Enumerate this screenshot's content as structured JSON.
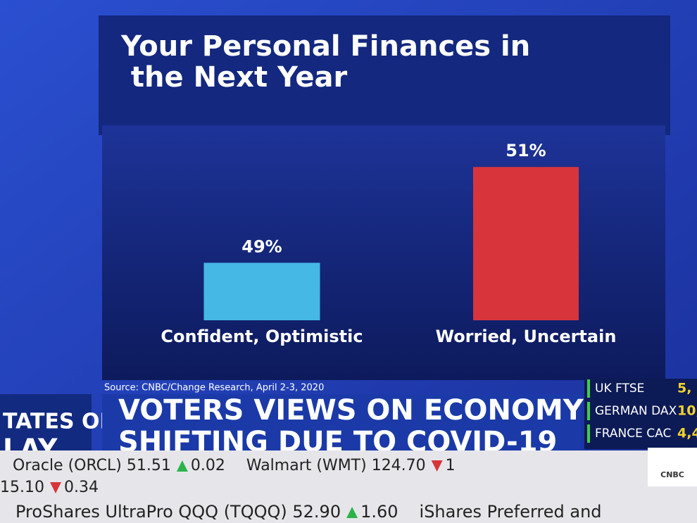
{
  "chart_data": {
    "type": "bar",
    "title": "Your Personal Finances in the Next Year",
    "categories": [
      "Confident, Optimistic",
      "Worried, Uncertain"
    ],
    "values": [
      49,
      51
    ],
    "value_labels": [
      "49%",
      "51%"
    ],
    "colors": [
      "#45b8e6",
      "#d8343c"
    ],
    "ylim": [
      47.8,
      51.4
    ],
    "source": "Source: CNBC/Change Research, April 2-3, 2020"
  },
  "headline": {
    "lines": [
      "VOTERS VIEWS ON ECONOMY",
      "SHIFTING DUE TO COVID-19"
    ]
  },
  "show_logo": {
    "lines": [
      "TATES OF",
      "LAY"
    ]
  },
  "markets": [
    {
      "name": "UK FTSE",
      "value": "5,"
    },
    {
      "name": "GERMAN DAX",
      "value": "10,"
    },
    {
      "name": "FRANCE CAC",
      "value": "4,4"
    }
  ],
  "ticker": {
    "row1": [
      {
        "text": "Oracle (ORCL) 51.51",
        "change": "0.02",
        "direction": "up"
      },
      {
        "text": "Walmart (WMT) 124.70",
        "change": "1",
        "direction": "down"
      }
    ],
    "row2": [
      {
        "text": "15.10",
        "change": "0.34",
        "direction": "down"
      }
    ],
    "row3": [
      {
        "text": "ProShares UltraPro QQQ (TQQQ) 52.90",
        "change": "1.60",
        "direction": "up"
      },
      {
        "text": "iShares Preferred and",
        "change": null,
        "direction": null
      }
    ],
    "network": "CNBC"
  }
}
